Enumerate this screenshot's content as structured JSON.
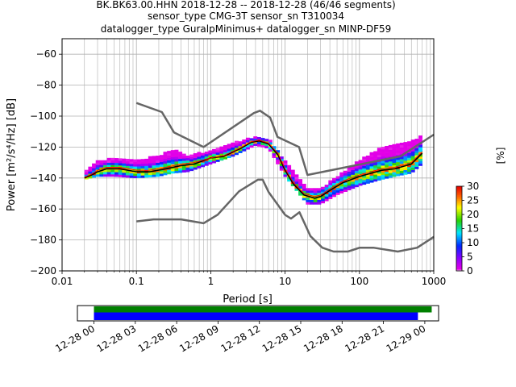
{
  "title": {
    "line1": "BK.BK63.00.HHN   2018-12-28 -- 2018-12-28  (46/46 segments)",
    "line2": "sensor_type CMG-3T sensor_sn T310034",
    "line3": "datalogger_type GuralpMinimus+ datalogger_sn MINP-DF59"
  },
  "chart_data": [
    {
      "type": "heatmap",
      "xlabel": "Period [s]",
      "ylabel": "Power [m²/s⁴/Hz] [dB]",
      "xscale": "log",
      "xlim": [
        0.01,
        1000
      ],
      "ylim": [
        -200,
        -50
      ],
      "x_ticks": [
        {
          "v": 0.01,
          "label": "0.01"
        },
        {
          "v": 0.1,
          "label": "0.1"
        },
        {
          "v": 1,
          "label": "1"
        },
        {
          "v": 10,
          "label": "10"
        },
        {
          "v": 100,
          "label": "100"
        },
        {
          "v": 1000,
          "label": "1000"
        }
      ],
      "y_ticks": [
        {
          "v": -60,
          "label": "−60"
        },
        {
          "v": -80,
          "label": "−80"
        },
        {
          "v": -100,
          "label": "−100"
        },
        {
          "v": -120,
          "label": "−120"
        },
        {
          "v": -140,
          "label": "−140"
        },
        {
          "v": -160,
          "label": "−160"
        },
        {
          "v": -180,
          "label": "−180"
        },
        {
          "v": -200,
          "label": "−200"
        }
      ],
      "grid": true,
      "colorbar": {
        "label": "[%]",
        "range": [
          0,
          30
        ],
        "ticks": [
          {
            "v": 0,
            "label": "0"
          },
          {
            "v": 5,
            "label": "5"
          },
          {
            "v": 10,
            "label": "10"
          },
          {
            "v": 15,
            "label": "15"
          },
          {
            "v": 20,
            "label": "20"
          },
          {
            "v": 25,
            "label": "25"
          },
          {
            "v": 30,
            "label": "30"
          }
        ]
      },
      "colors": {
        "noise_model": "#666666",
        "mode_line": "#000000",
        "mean_line": "#ff0000"
      },
      "series": [
        {
          "role": "new_high_noise_model",
          "x": [
            0.1,
            0.22,
            0.32,
            0.8,
            3.8,
            4.6,
            6.3,
            7.9,
            15.4,
            20,
            354.8,
            1000
          ],
          "y": [
            -91.5,
            -97.4,
            -110.5,
            -120,
            -98,
            -96.5,
            -101,
            -113.5,
            -120,
            -138,
            -126,
            -112
          ]
        },
        {
          "role": "new_low_noise_model",
          "x": [
            0.1,
            0.17,
            0.4,
            0.8,
            1.24,
            2.4,
            4.3,
            5,
            6,
            10,
            12,
            15.6,
            21.9,
            31.6,
            45,
            70,
            101,
            154,
            328,
            600,
            1000
          ],
          "y": [
            -168,
            -166.7,
            -166.7,
            -169.2,
            -163.7,
            -148.6,
            -141.1,
            -141.1,
            -149,
            -163.8,
            -166.2,
            -162.1,
            -177.5,
            -185,
            -187.5,
            -187.5,
            -185,
            -185,
            -187.5,
            -185,
            -178
          ]
        },
        {
          "role": "mode",
          "x": [
            0.02,
            0.025,
            0.03,
            0.04,
            0.06,
            0.1,
            0.15,
            0.25,
            0.4,
            0.6,
            1,
            1.5,
            2.5,
            3.5,
            4.5,
            6,
            8,
            10,
            13,
            18,
            25,
            30,
            40,
            60,
            100,
            200,
            300,
            500,
            700
          ],
          "y": [
            -140,
            -138,
            -136,
            -134,
            -134,
            -136,
            -136,
            -134,
            -132,
            -131,
            -127,
            -126,
            -121,
            -117,
            -116,
            -118,
            -125,
            -135,
            -144,
            -151,
            -153,
            -152,
            -148,
            -143,
            -139,
            -135,
            -134,
            -131,
            -124
          ]
        },
        {
          "role": "mean",
          "x": [
            0.02,
            0.025,
            0.03,
            0.04,
            0.06,
            0.1,
            0.15,
            0.25,
            0.4,
            0.6,
            1,
            1.5,
            2.5,
            3.5,
            4.5,
            6,
            8,
            10,
            13,
            18,
            25,
            30,
            40,
            60,
            100,
            200,
            300,
            500,
            700
          ],
          "y": [
            -139.5,
            -137.5,
            -135,
            -133,
            -133,
            -135,
            -135,
            -133,
            -131,
            -130,
            -127,
            -125.5,
            -120.5,
            -116.5,
            -115.5,
            -117.5,
            -124,
            -134,
            -143,
            -150,
            -152,
            -151,
            -147,
            -142,
            -138,
            -134,
            -133,
            -130,
            -123
          ]
        }
      ],
      "density_band": {
        "x": [
          0.02,
          0.03,
          0.05,
          0.1,
          0.2,
          0.3,
          0.5,
          1,
          2,
          4,
          6,
          10,
          20,
          30,
          50,
          100,
          200,
          300,
          500,
          700
        ],
        "y_low": [
          -141,
          -139,
          -139,
          -140,
          -139,
          -137,
          -136,
          -131,
          -126,
          -119,
          -121,
          -139,
          -157,
          -157,
          -151,
          -145,
          -141,
          -139,
          -137,
          -131
        ],
        "y_high": [
          -137,
          -129,
          -128,
          -129,
          -126,
          -122,
          -126,
          -123,
          -118,
          -114,
          -115,
          -130,
          -147,
          -147,
          -140,
          -129,
          -121,
          -119,
          -117,
          -113
        ]
      }
    },
    {
      "type": "timeline",
      "ticks": [
        {
          "v": 0,
          "label": "12-28 00"
        },
        {
          "v": 3,
          "label": "12-28 03"
        },
        {
          "v": 6,
          "label": "12-28 06"
        },
        {
          "v": 9,
          "label": "12-28 09"
        },
        {
          "v": 12,
          "label": "12-28 12"
        },
        {
          "v": 15,
          "label": "12-28 15"
        },
        {
          "v": 18,
          "label": "12-28 18"
        },
        {
          "v": 21,
          "label": "12-28 21"
        },
        {
          "v": 24,
          "label": "12-29 00"
        }
      ],
      "xlim": [
        -1.2,
        25
      ],
      "bars": [
        {
          "role": "data_coverage",
          "start": 0,
          "end": 24.5,
          "color": "#008000"
        },
        {
          "role": "psd_coverage",
          "start": 0,
          "end": 23.5,
          "color": "#0000ff"
        }
      ]
    }
  ]
}
